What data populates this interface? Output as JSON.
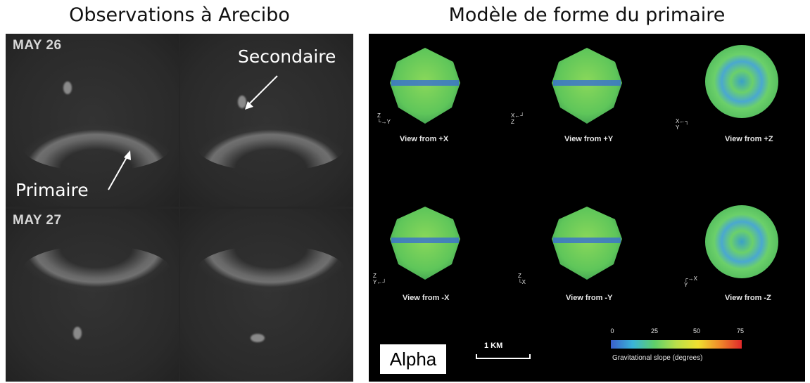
{
  "titles": {
    "left": "Observations à Arecibo",
    "right": "Modèle de forme du primaire"
  },
  "radar": {
    "dates": [
      "MAY 26",
      "MAY 27"
    ],
    "labels": {
      "secondary": "Secondaire",
      "primary": "Primaire"
    }
  },
  "model": {
    "views": [
      "View from +X",
      "View from +Y",
      "View from +Z",
      "View from -X",
      "View from -Y",
      "View from -Z"
    ],
    "axes": [
      {
        "a": "Z",
        "b": "Y"
      },
      {
        "a": "Z",
        "b": "X"
      },
      {
        "a": "X",
        "b": "Y"
      },
      {
        "a": "Z",
        "b": "Y"
      },
      {
        "a": "Z",
        "b": "X"
      },
      {
        "a": "X",
        "b": "Y"
      }
    ],
    "name": "Alpha",
    "scale": "1 KM",
    "colorbar": {
      "ticks": [
        "0",
        "25",
        "50",
        "75"
      ],
      "title": "Gravitational slope (degrees)"
    }
  }
}
